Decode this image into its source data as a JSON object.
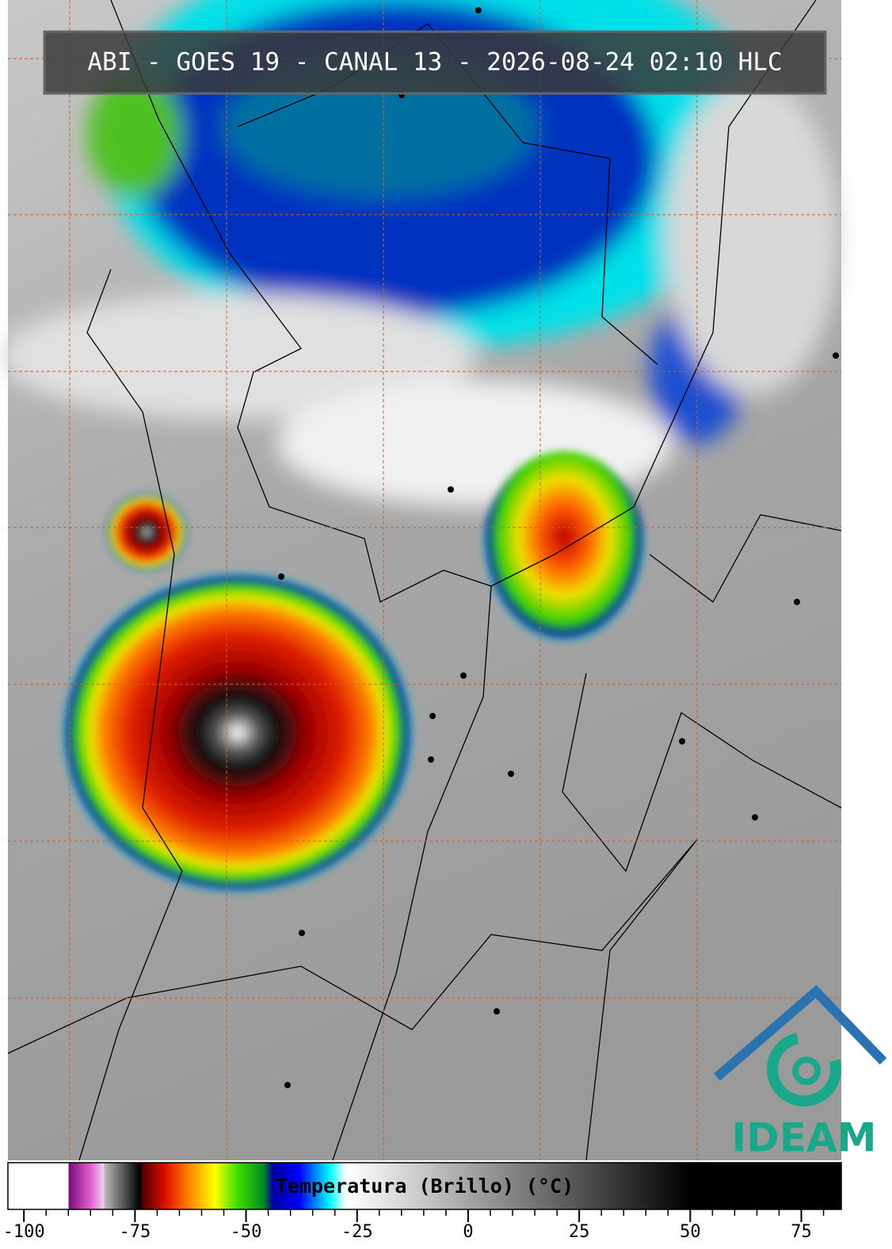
{
  "header": {
    "title": "ABI - GOES 19 - CANAL 13 - 2026-08-24 02:10 HLC"
  },
  "logo": {
    "text": "IDEAM"
  },
  "colorbar": {
    "label": "Temperatura (Brillo) (°C)",
    "lim": [
      -103.6,
      84
    ],
    "ticks": [
      -100,
      -75,
      -50,
      -25,
      0,
      25,
      50,
      75
    ],
    "stops": [
      [
        -103.6,
        "#ffffff"
      ],
      [
        -90,
        "#ffffff"
      ],
      [
        -89.9,
        "#7a0a7a"
      ],
      [
        -85,
        "#e060d0"
      ],
      [
        -82,
        "#f0d0f0"
      ],
      [
        -81.9,
        "#bbbbbb"
      ],
      [
        -76,
        "#333333"
      ],
      [
        -74,
        "#000000"
      ],
      [
        -73,
        "#5a0000"
      ],
      [
        -68,
        "#e01000"
      ],
      [
        -63,
        "#ff8000"
      ],
      [
        -57,
        "#ffff00"
      ],
      [
        -52,
        "#40e000"
      ],
      [
        -46,
        "#008a20"
      ],
      [
        -44,
        "#0000a0"
      ],
      [
        -38,
        "#0000ff"
      ],
      [
        -31,
        "#00ffff"
      ],
      [
        -28,
        "#e0ffff"
      ],
      [
        -27,
        "#ffffff"
      ],
      [
        50,
        "#000000"
      ],
      [
        84,
        "#000000"
      ]
    ]
  }
}
